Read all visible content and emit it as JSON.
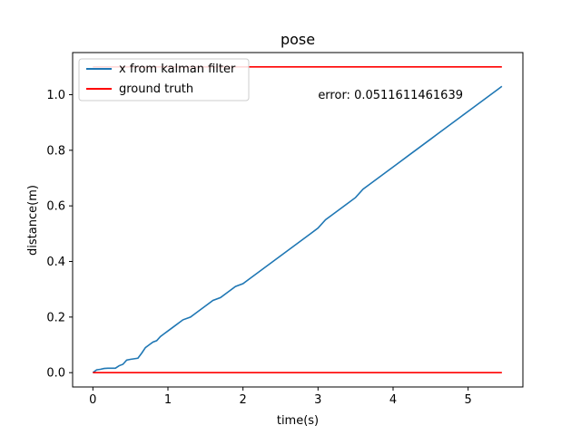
{
  "chart_data": {
    "type": "line",
    "title": "pose",
    "xlabel": "time(s)",
    "ylabel": "distance(m)",
    "xlim": [
      -0.27,
      5.73
    ],
    "ylim": [
      -0.0515,
      1.1515
    ],
    "xticks": [
      0,
      1,
      2,
      3,
      4,
      5
    ],
    "yticks": [
      0.0,
      0.2,
      0.4,
      0.6,
      0.8,
      1.0
    ],
    "xtick_labels": [
      "0",
      "1",
      "2",
      "3",
      "4",
      "5"
    ],
    "ytick_labels": [
      "0.0",
      "0.2",
      "0.4",
      "0.6",
      "0.8",
      "1.0"
    ],
    "grid": false,
    "legend_position": "top-left",
    "annotation": {
      "text": "error: 0.0511611461639",
      "x": 3.0,
      "y": 1.0
    },
    "series": [
      {
        "name": "x from kalman filter",
        "color": "#1f77b4",
        "x": [
          0,
          0.05,
          0.1,
          0.15,
          0.2,
          0.25,
          0.3,
          0.35,
          0.4,
          0.45,
          0.5,
          0.55,
          0.6,
          0.65,
          0.7,
          0.75,
          0.8,
          0.85,
          0.9,
          0.95,
          1.0,
          1.1,
          1.2,
          1.3,
          1.4,
          1.5,
          1.6,
          1.7,
          1.8,
          1.9,
          2.0,
          2.1,
          2.2,
          2.3,
          2.4,
          2.5,
          2.6,
          2.7,
          2.8,
          2.9,
          3.0,
          3.1,
          3.2,
          3.3,
          3.4,
          3.5,
          3.6,
          3.7,
          3.8,
          3.9,
          4.0,
          4.1,
          4.2,
          4.3,
          4.4,
          4.5,
          4.6,
          4.7,
          4.8,
          4.9,
          5.0,
          5.1,
          5.2,
          5.3,
          5.4,
          5.45
        ],
        "y": [
          0.0,
          0.01,
          0.012,
          0.015,
          0.016,
          0.016,
          0.016,
          0.025,
          0.03,
          0.045,
          0.048,
          0.05,
          0.052,
          0.07,
          0.09,
          0.1,
          0.11,
          0.115,
          0.13,
          0.14,
          0.15,
          0.17,
          0.19,
          0.2,
          0.22,
          0.24,
          0.26,
          0.27,
          0.29,
          0.31,
          0.32,
          0.34,
          0.36,
          0.38,
          0.4,
          0.42,
          0.44,
          0.46,
          0.48,
          0.5,
          0.52,
          0.55,
          0.57,
          0.59,
          0.61,
          0.63,
          0.66,
          0.68,
          0.7,
          0.72,
          0.74,
          0.76,
          0.78,
          0.8,
          0.82,
          0.84,
          0.86,
          0.88,
          0.9,
          0.92,
          0.94,
          0.96,
          0.98,
          1.0,
          1.02,
          1.03
        ]
      },
      {
        "name": "ground truth",
        "color": "#ff0000",
        "segments": [
          {
            "x": [
              0,
              5.45
            ],
            "y": [
              1.1,
              1.1
            ]
          },
          {
            "x": [
              0,
              5.45
            ],
            "y": [
              0.0,
              0.0
            ]
          }
        ]
      }
    ]
  }
}
